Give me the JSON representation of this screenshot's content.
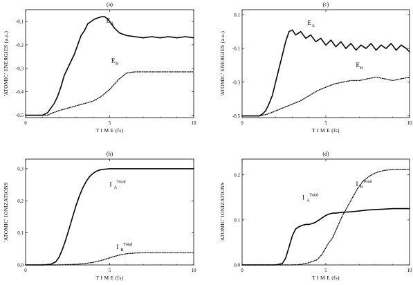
{
  "chart_data": [
    {
      "type": "line",
      "panel_label": "(a)",
      "xlabel": "T I M E  (fs)",
      "ylabel": "'ATOMIC' ENERGIES  (a.u.)",
      "xlim": [
        0,
        10
      ],
      "ylim": [
        -0.51,
        -0.05
      ],
      "x_ticks": [
        0,
        5,
        10
      ],
      "y_ticks": [
        -0.1,
        -0.2,
        -0.3,
        -0.4,
        -0.5
      ],
      "x_tick_labels": [
        "0",
        "5",
        "10"
      ],
      "y_tick_labels": [
        "-0.1",
        "-0.2",
        "-0.3",
        "-0.4",
        "-0.5"
      ],
      "grid": false,
      "series": [
        {
          "label_main": "E",
          "label_sub": "A",
          "label_sup": "",
          "label_at": [
            4.8,
            -0.105
          ],
          "style": "solid",
          "x": [
            0,
            0.5,
            1.0,
            1.3,
            1.5,
            1.7,
            1.9,
            2.1,
            2.3,
            2.5,
            2.7,
            2.9,
            3.1,
            3.3,
            3.5,
            3.7,
            3.9,
            4.1,
            4.3,
            4.5,
            4.7,
            4.9,
            5.1,
            5.3,
            5.6,
            6.0,
            6.5,
            7.0,
            7.5,
            8.0,
            8.5,
            9.0,
            9.5,
            10.0
          ],
          "y": [
            -0.5,
            -0.5,
            -0.5,
            -0.49,
            -0.47,
            -0.45,
            -0.42,
            -0.38,
            -0.33,
            -0.3,
            -0.27,
            -0.24,
            -0.2,
            -0.16,
            -0.14,
            -0.11,
            -0.1,
            -0.09,
            -0.085,
            -0.08,
            -0.08,
            -0.09,
            -0.11,
            -0.13,
            -0.15,
            -0.16,
            -0.165,
            -0.17,
            -0.165,
            -0.17,
            -0.165,
            -0.17,
            -0.165,
            -0.17
          ]
        },
        {
          "label_main": "E",
          "label_sub": "B",
          "label_sup": "",
          "label_at": [
            5.1,
            -0.275
          ],
          "style": "dotted",
          "x": [
            0,
            0.5,
            1.0,
            1.3,
            1.6,
            2.0,
            2.5,
            3.0,
            3.5,
            4.0,
            4.5,
            5.0,
            5.5,
            6.0,
            6.5,
            7.0,
            7.5,
            8.0,
            8.5,
            9.0,
            9.5,
            10.0
          ],
          "y": [
            -0.5,
            -0.5,
            -0.5,
            -0.5,
            -0.49,
            -0.48,
            -0.47,
            -0.46,
            -0.45,
            -0.44,
            -0.42,
            -0.39,
            -0.35,
            -0.32,
            -0.315,
            -0.315,
            -0.315,
            -0.315,
            -0.315,
            -0.315,
            -0.315,
            -0.315
          ]
        }
      ]
    },
    {
      "type": "line",
      "panel_label": "(c)",
      "xlabel": "T I M E  (fs)",
      "ylabel": "'ATOMIC' ENERGIES  (a.u.)",
      "xlim": [
        0,
        10
      ],
      "ylim": [
        -0.51,
        0.13
      ],
      "x_ticks": [
        0,
        5,
        10
      ],
      "y_ticks": [
        0.1,
        -0.1,
        -0.3,
        -0.5
      ],
      "x_tick_labels": [
        "0",
        "5",
        "10"
      ],
      "y_tick_labels": [
        "0.1",
        "-0.1",
        "-0.3",
        "-0.5"
      ],
      "grid": false,
      "series": [
        {
          "label_main": "E",
          "label_sub": "A",
          "label_sup": "",
          "label_at": [
            3.9,
            0.04
          ],
          "style": "solid",
          "x": [
            0,
            0.5,
            1.0,
            1.2,
            1.4,
            1.6,
            1.8,
            2.0,
            2.2,
            2.4,
            2.6,
            2.8,
            3.0,
            3.2,
            3.5,
            3.8,
            4.1,
            4.4,
            4.7,
            5.0,
            5.3,
            5.6,
            5.9,
            6.2,
            6.5,
            6.8,
            7.1,
            7.4,
            7.7,
            8.0,
            8.3,
            8.6,
            8.9,
            9.2,
            9.5,
            9.8,
            10.0
          ],
          "y": [
            -0.5,
            -0.5,
            -0.5,
            -0.49,
            -0.47,
            -0.43,
            -0.38,
            -0.3,
            -0.22,
            -0.14,
            -0.06,
            0.0,
            0.01,
            -0.02,
            0.0,
            -0.04,
            -0.02,
            -0.06,
            -0.04,
            -0.08,
            -0.05,
            -0.09,
            -0.06,
            -0.1,
            -0.07,
            -0.11,
            -0.08,
            -0.1,
            -0.07,
            -0.11,
            -0.08,
            -0.1,
            -0.07,
            -0.11,
            -0.08,
            -0.1,
            -0.12
          ]
        },
        {
          "label_main": "E",
          "label_sub": "B",
          "label_sup": "",
          "label_at": [
            6.8,
            -0.21
          ],
          "style": "dotted",
          "x": [
            0,
            0.5,
            1.0,
            1.5,
            2.0,
            2.5,
            3.0,
            3.5,
            4.0,
            4.5,
            5.0,
            5.5,
            6.0,
            6.5,
            7.0,
            7.5,
            8.0,
            8.5,
            9.0,
            9.5,
            10.0
          ],
          "y": [
            -0.5,
            -0.5,
            -0.5,
            -0.49,
            -0.47,
            -0.45,
            -0.43,
            -0.41,
            -0.38,
            -0.35,
            -0.33,
            -0.31,
            -0.3,
            -0.29,
            -0.29,
            -0.28,
            -0.27,
            -0.28,
            -0.29,
            -0.28,
            -0.27
          ]
        }
      ]
    },
    {
      "type": "line",
      "panel_label": "(b)",
      "xlabel": "T I M E  (fs)",
      "ylabel": "'ATOMIC' IONIZATIONS",
      "xlim": [
        0,
        10
      ],
      "ylim": [
        0,
        0.33
      ],
      "x_ticks": [
        0,
        5,
        10
      ],
      "y_ticks": [
        0,
        0.1,
        0.2,
        0.3
      ],
      "x_tick_labels": [
        "0",
        "5",
        "10"
      ],
      "y_tick_labels": [
        "0.0",
        "0.1",
        "0.2",
        "0.3"
      ],
      "grid": false,
      "series": [
        {
          "label_main": "I",
          "label_sub": "A",
          "label_sup": "Total",
          "label_at": [
            5.0,
            0.245
          ],
          "style": "solid",
          "x": [
            0,
            1.0,
            1.5,
            1.8,
            2.0,
            2.2,
            2.4,
            2.6,
            2.8,
            3.0,
            3.2,
            3.4,
            3.6,
            3.8,
            4.0,
            4.2,
            4.4,
            4.6,
            4.8,
            5.0,
            5.5,
            6.0,
            7.0,
            8.0,
            9.0,
            10.0
          ],
          "y": [
            0,
            0,
            0.002,
            0.01,
            0.025,
            0.05,
            0.08,
            0.115,
            0.15,
            0.185,
            0.215,
            0.24,
            0.26,
            0.275,
            0.285,
            0.292,
            0.296,
            0.298,
            0.299,
            0.3,
            0.3,
            0.3,
            0.3,
            0.3,
            0.3,
            0.3
          ]
        },
        {
          "label_main": "I",
          "label_sub": "B",
          "label_sup": "Total",
          "label_at": [
            5.4,
            0.05
          ],
          "style": "dotted",
          "x": [
            0,
            2.0,
            2.5,
            3.0,
            3.5,
            4.0,
            4.5,
            5.0,
            5.5,
            6.0,
            6.5,
            7.0,
            8.0,
            9.0,
            10.0
          ],
          "y": [
            0,
            0,
            0.001,
            0.002,
            0.004,
            0.008,
            0.014,
            0.022,
            0.03,
            0.035,
            0.037,
            0.038,
            0.038,
            0.038,
            0.038
          ]
        }
      ]
    },
    {
      "type": "line",
      "panel_label": "(d)",
      "xlabel": "T I M E  (fs)",
      "ylabel": "'ATOMIC' IONIZATIONS",
      "xlim": [
        0,
        10
      ],
      "ylim": [
        0,
        0.235
      ],
      "x_ticks": [
        0,
        5,
        10
      ],
      "y_ticks": [
        0,
        0.1,
        0.2
      ],
      "x_tick_labels": [
        "0",
        "5",
        "10"
      ],
      "y_tick_labels": [
        "0.0",
        "0.1",
        "0.2"
      ],
      "grid": false,
      "series": [
        {
          "label_main": "I",
          "label_sub": "A",
          "label_sup": "Total",
          "label_at": [
            3.6,
            0.145
          ],
          "style": "solid",
          "x": [
            0,
            2.0,
            2.4,
            2.6,
            2.8,
            3.0,
            3.2,
            3.4,
            3.6,
            3.8,
            4.0,
            4.2,
            4.4,
            4.6,
            4.8,
            5.0,
            5.2,
            5.4,
            5.6,
            5.8,
            6.0,
            6.5,
            7.0,
            7.5,
            8.0,
            8.5,
            9.0,
            9.5,
            10.0
          ],
          "y": [
            0,
            0,
            0.003,
            0.015,
            0.04,
            0.065,
            0.08,
            0.085,
            0.088,
            0.09,
            0.09,
            0.092,
            0.095,
            0.1,
            0.105,
            0.11,
            0.113,
            0.115,
            0.115,
            0.116,
            0.117,
            0.118,
            0.12,
            0.122,
            0.123,
            0.124,
            0.125,
            0.125,
            0.125
          ]
        },
        {
          "label_main": "I",
          "label_sub": "B",
          "label_sup": "Total",
          "label_at": [
            6.8,
            0.175
          ],
          "style": "dotted",
          "x": [
            0,
            3.0,
            3.5,
            4.0,
            4.5,
            4.8,
            5.1,
            5.4,
            5.7,
            6.0,
            6.3,
            6.6,
            6.9,
            7.2,
            7.6,
            8.0,
            8.5,
            9.0,
            9.5,
            10.0
          ],
          "y": [
            0,
            0,
            0.001,
            0.005,
            0.012,
            0.025,
            0.045,
            0.06,
            0.085,
            0.11,
            0.13,
            0.15,
            0.17,
            0.185,
            0.197,
            0.205,
            0.21,
            0.212,
            0.212,
            0.212
          ]
        }
      ]
    }
  ]
}
